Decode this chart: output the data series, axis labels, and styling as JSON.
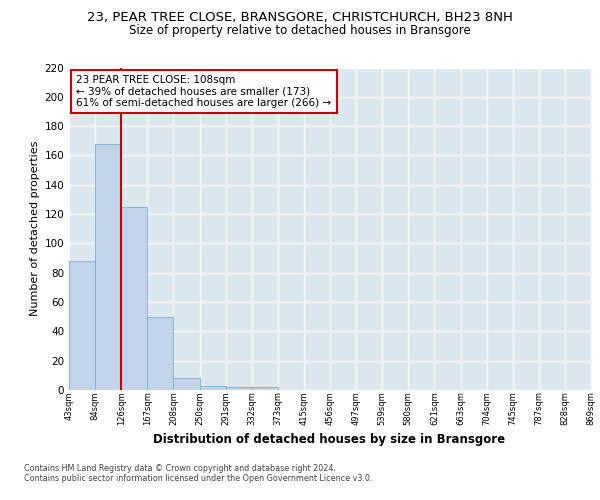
{
  "title1": "23, PEAR TREE CLOSE, BRANSGORE, CHRISTCHURCH, BH23 8NH",
  "title2": "Size of property relative to detached houses in Bransgore",
  "xlabel": "Distribution of detached houses by size in Bransgore",
  "ylabel": "Number of detached properties",
  "bins": [
    "43sqm",
    "84sqm",
    "126sqm",
    "167sqm",
    "208sqm",
    "250sqm",
    "291sqm",
    "332sqm",
    "373sqm",
    "415sqm",
    "456sqm",
    "497sqm",
    "539sqm",
    "580sqm",
    "621sqm",
    "663sqm",
    "704sqm",
    "745sqm",
    "787sqm",
    "828sqm",
    "869sqm"
  ],
  "bar_heights": [
    88,
    168,
    125,
    50,
    8,
    3,
    2,
    2,
    0,
    0,
    0,
    0,
    0,
    0,
    0,
    0,
    0,
    0,
    0,
    0
  ],
  "bar_color": "#c2d4e8",
  "bar_edge_color": "#7aadd4",
  "vline_x": 2,
  "vline_color": "#cc0000",
  "annotation_line1": "23 PEAR TREE CLOSE: 108sqm",
  "annotation_line2": "← 39% of detached houses are smaller (173)",
  "annotation_line3": "61% of semi-detached houses are larger (266) →",
  "annotation_box_color": "#ffffff",
  "annotation_box_edge": "#cc0000",
  "ylim": [
    0,
    220
  ],
  "yticks": [
    0,
    20,
    40,
    60,
    80,
    100,
    120,
    140,
    160,
    180,
    200,
    220
  ],
  "footer1": "Contains HM Land Registry data © Crown copyright and database right 2024.",
  "footer2": "Contains public sector information licensed under the Open Government Licence v3.0.",
  "bg_color": "#dce8f0",
  "fig_bg_color": "#ffffff",
  "title1_fontsize": 9.5,
  "title2_fontsize": 8.5,
  "ylabel_fontsize": 8,
  "xlabel_fontsize": 8.5,
  "ytick_fontsize": 7.5,
  "xtick_fontsize": 6.0,
  "ann_fontsize": 7.5,
  "footer_fontsize": 5.8
}
